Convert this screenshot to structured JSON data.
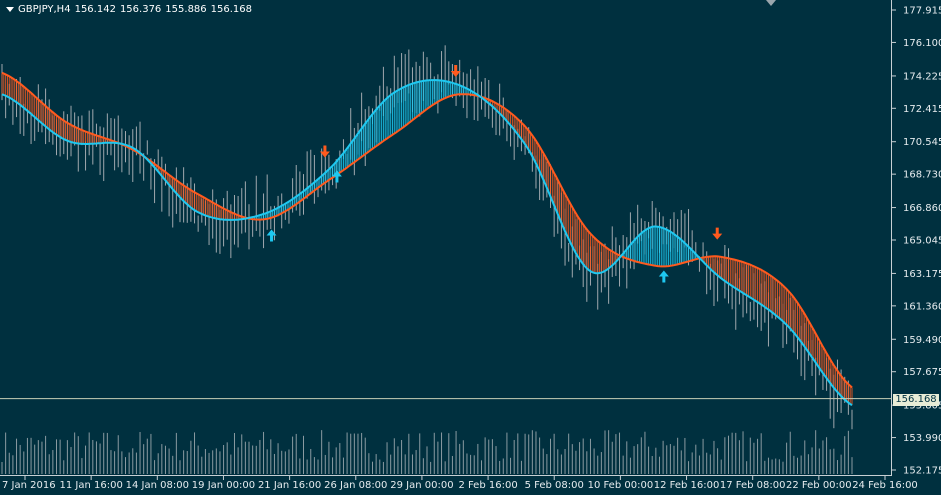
{
  "header": {
    "symbol_timeframe": "GBPJPY,H4",
    "open": "156.142",
    "high": "156.376",
    "low": "155.886",
    "close": "156.168"
  },
  "current_price_label": "156.168",
  "colors": {
    "background": "#00303f",
    "fast_line": "#1ec8f0",
    "slow_line": "#ff5a1e",
    "bull_fill": "#1ec8f0",
    "bear_fill": "#ff5a1e",
    "candles": "#a0a8ae",
    "volume": "#b8bec2",
    "axis_text": "#e6ecef"
  },
  "chart_data": {
    "type": "line",
    "title": "GBPJPY,H4",
    "ylim": [
      152.175,
      177.915
    ],
    "y_ticks": [
      "177.915",
      "176.100",
      "174.225",
      "172.415",
      "170.545",
      "168.730",
      "166.860",
      "165.045",
      "163.175",
      "161.360",
      "159.490",
      "157.675",
      "155.805",
      "153.990",
      "152.175"
    ],
    "x_ticks": [
      "7 Jan 2016",
      "11 Jan 16:00",
      "14 Jan 08:00",
      "19 Jan 00:00",
      "21 Jan 16:00",
      "26 Jan 08:00",
      "29 Jan 00:00",
      "2 Feb 16:00",
      "5 Feb 08:00",
      "10 Feb 00:00",
      "12 Feb 16:00",
      "17 Feb 08:00",
      "22 Feb 00:00",
      "24 Feb 16:00"
    ],
    "x": [
      "7 Jan 2016",
      "11 Jan 16:00",
      "14 Jan 08:00",
      "19 Jan 00:00",
      "21 Jan 16:00",
      "26 Jan 08:00",
      "29 Jan 00:00",
      "2 Feb 16:00",
      "5 Feb 08:00",
      "10 Feb 00:00",
      "12 Feb 16:00",
      "17 Feb 08:00",
      "22 Feb 00:00",
      "24 Feb 16:00"
    ],
    "series": [
      {
        "values": [
          173.2,
          170.6,
          170.2,
          166.6,
          166.5,
          169.0,
          173.3,
          173.7,
          170.4,
          163.3,
          165.8,
          162.9,
          160.3,
          155.8
        ]
      },
      {
        "values": [
          174.4,
          171.6,
          170.1,
          167.6,
          166.2,
          168.4,
          171.0,
          173.2,
          171.4,
          165.4,
          163.6,
          164.1,
          162.3,
          156.8
        ]
      }
    ],
    "signals": [
      {
        "type": "buy",
        "x": "21 Jan 16:00",
        "price": 165.3
      },
      {
        "type": "sell",
        "x": "26 Jan 08:00",
        "price": 170.0
      },
      {
        "type": "buy",
        "x": "26 Jan 08:00",
        "price": 168.6
      },
      {
        "type": "sell",
        "x": "2 Feb 16:00",
        "price": 174.5
      },
      {
        "type": "buy",
        "x": "12 Feb 16:00",
        "price": 163.0
      },
      {
        "type": "sell",
        "x": "17 Feb 08:00",
        "price": 165.4
      }
    ],
    "current_price": 156.168,
    "grid": false
  }
}
